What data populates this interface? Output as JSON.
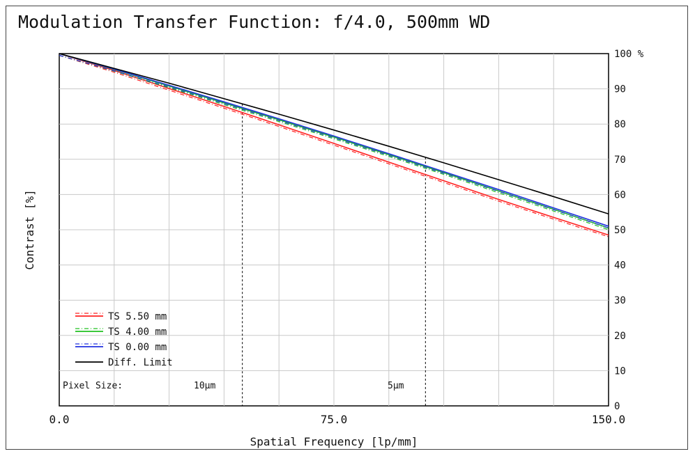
{
  "chart_data": {
    "type": "line",
    "title": "Modulation Transfer Function: f/4.0, 500mm WD",
    "xlabel": "Spatial Frequency [lp/mm]",
    "ylabel": "Contrast [%]",
    "xlim": [
      0,
      150
    ],
    "ylim": [
      0,
      100
    ],
    "x_ticks": [
      "0.0",
      "75.0",
      "150.0"
    ],
    "y_ticks": [
      "0",
      "10",
      "20",
      "30",
      "40",
      "50",
      "60",
      "70",
      "80",
      "90",
      "100 %"
    ],
    "grid": true,
    "legend_position": "bottom-left",
    "series": [
      {
        "name": "TS 5.50 mm",
        "color": "#ff2020",
        "style": "dash-dot",
        "x": [
          0,
          15,
          30,
          45,
          60,
          75,
          90,
          105,
          120,
          135,
          150
        ],
        "y": [
          100,
          95.2,
          90.1,
          85.0,
          79.8,
          74.5,
          69.2,
          63.9,
          58.6,
          53.5,
          48.5
        ]
      },
      {
        "name": "TS 4.00 mm",
        "color": "#20c020",
        "style": "dash-dot",
        "x": [
          0,
          15,
          30,
          45,
          60,
          75,
          90,
          105,
          120,
          135,
          150
        ],
        "y": [
          100,
          95.5,
          90.8,
          86.0,
          81.2,
          76.3,
          71.3,
          66.2,
          61.0,
          55.8,
          50.5
        ]
      },
      {
        "name": "TS 0.00 mm",
        "color": "#2030e0",
        "style": "dash-dot",
        "x": [
          0,
          15,
          30,
          45,
          60,
          75,
          90,
          105,
          120,
          135,
          150
        ],
        "y": [
          100,
          95.6,
          91.0,
          86.3,
          81.5,
          76.6,
          71.6,
          66.5,
          61.4,
          56.2,
          51.0
        ]
      },
      {
        "name": "Diff. Limit",
        "color": "#000000",
        "style": "solid",
        "x": [
          0,
          15,
          30,
          45,
          60,
          75,
          90,
          105,
          120,
          135,
          150
        ],
        "y": [
          100,
          95.8,
          91.6,
          87.2,
          82.8,
          78.3,
          73.7,
          69.0,
          64.2,
          59.4,
          54.5
        ]
      }
    ],
    "annotations": [
      {
        "label": "Pixel Size:"
      },
      {
        "label": "10μm",
        "x": 50
      },
      {
        "label": "5μm",
        "x": 100
      }
    ]
  }
}
